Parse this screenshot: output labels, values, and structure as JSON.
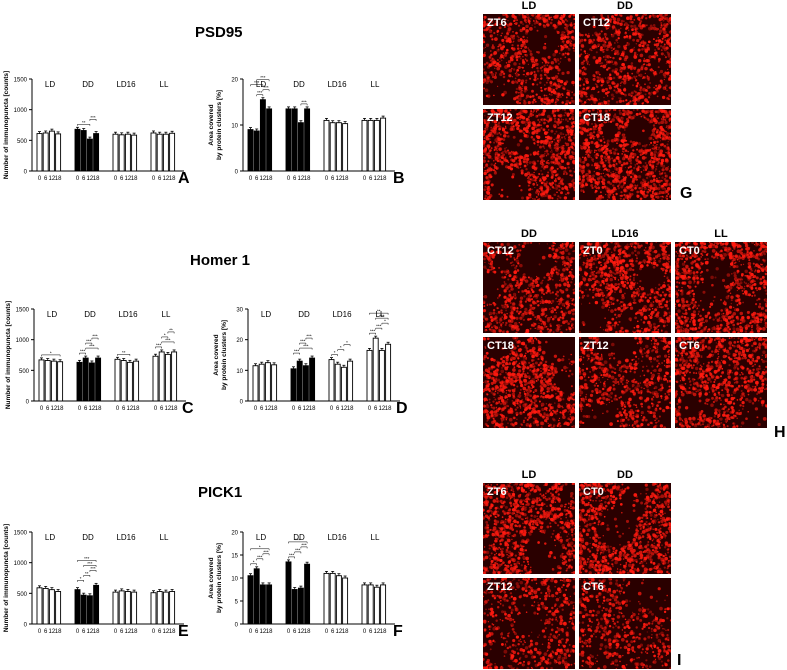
{
  "sections": [
    {
      "title": "PSD95"
    },
    {
      "title": "Homer 1"
    },
    {
      "title": "PICK1"
    }
  ],
  "chart_data": [
    {
      "panel": "A",
      "type": "bar",
      "ylabel": "Number of immunopuncta [counts]",
      "ylim": [
        0,
        1500
      ],
      "yticks": [
        "0",
        "500",
        "1000",
        "1500"
      ],
      "groups": [
        "LD",
        "DD",
        "LD16",
        "LL"
      ],
      "x_tick_labels": [
        "0",
        "6",
        "12",
        "18"
      ],
      "values": [
        [
          610,
          620,
          650,
          605
        ],
        [
          680,
          660,
          520,
          610
        ],
        [
          600,
          590,
          600,
          585
        ],
        [
          620,
          600,
          600,
          615
        ]
      ],
      "filled_groups": [
        "DD"
      ],
      "significance": [
        {
          "group": "DD",
          "from": 0,
          "to": 2,
          "text": "**"
        },
        {
          "group": "DD",
          "from": 2,
          "to": 3,
          "text": "***"
        }
      ]
    },
    {
      "panel": "B",
      "type": "bar",
      "ylabel": "Area covered by protein clusters [%]",
      "ylim": [
        0,
        20
      ],
      "yticks": [
        "0",
        "10",
        "20"
      ],
      "groups": [
        "LD",
        "DD",
        "LD16",
        "LL"
      ],
      "x_tick_labels": [
        "0",
        "6",
        "12",
        "18"
      ],
      "values": [
        [
          9,
          8.7,
          15.5,
          13.5
        ],
        [
          13.5,
          13.5,
          10.5,
          13.5
        ],
        [
          11,
          10.5,
          10.5,
          10.3
        ],
        [
          11,
          11,
          11,
          11.5
        ]
      ],
      "filled_groups": [
        "LD",
        "DD"
      ],
      "significance": [
        {
          "group": "LD",
          "from": 1,
          "to": 2,
          "text": "***"
        },
        {
          "group": "LD",
          "from": 2,
          "to": 3,
          "text": "***"
        },
        {
          "group": "LD",
          "from": 0,
          "to": 2,
          "text": "***"
        },
        {
          "group": "LD",
          "from": 1,
          "to": 3,
          "text": "***"
        },
        {
          "group": "DD",
          "from": 2,
          "to": 3,
          "text": "***"
        }
      ]
    },
    {
      "panel": "C",
      "type": "bar",
      "ylabel": "Number of immunopuncta [counts]",
      "ylim": [
        0,
        1500
      ],
      "yticks": [
        "0",
        "500",
        "1000",
        "1500"
      ],
      "groups": [
        "LD",
        "DD",
        "LD16",
        "LL"
      ],
      "x_tick_labels": [
        "0",
        "6",
        "12",
        "18"
      ],
      "values": [
        [
          670,
          660,
          650,
          640
        ],
        [
          630,
          700,
          620,
          700
        ],
        [
          680,
          660,
          630,
          650
        ],
        [
          730,
          800,
          760,
          800
        ]
      ],
      "filled_groups": [
        "DD"
      ],
      "significance": [
        {
          "group": "LD",
          "from": 0,
          "to": 3,
          "text": "*"
        },
        {
          "group": "DD",
          "from": 0,
          "to": 1,
          "text": "***"
        },
        {
          "group": "DD",
          "from": 1,
          "to": 3,
          "text": "***"
        },
        {
          "group": "DD",
          "from": 1,
          "to": 2,
          "text": "***"
        },
        {
          "group": "DD",
          "from": 2,
          "to": 3,
          "text": "***"
        },
        {
          "group": "LD16",
          "from": 0,
          "to": 2,
          "text": "**"
        },
        {
          "group": "LL",
          "from": 0,
          "to": 1,
          "text": "***"
        },
        {
          "group": "LL",
          "from": 1,
          "to": 3,
          "text": "***"
        },
        {
          "group": "LL",
          "from": 1,
          "to": 2,
          "text": "*"
        },
        {
          "group": "LL",
          "from": 2,
          "to": 3,
          "text": "**"
        }
      ]
    },
    {
      "panel": "D",
      "type": "bar",
      "ylabel": "Area covered by protein clusters [%]",
      "ylim": [
        0,
        30
      ],
      "yticks": [
        "0",
        "10",
        "20",
        "30"
      ],
      "groups": [
        "LD",
        "DD",
        "LD16",
        "LL"
      ],
      "x_tick_labels": [
        "0",
        "6",
        "12",
        "18"
      ],
      "values": [
        [
          11.5,
          12,
          12.5,
          11.8
        ],
        [
          10.5,
          13,
          11.5,
          14
        ],
        [
          13.5,
          12,
          11,
          13
        ],
        [
          16.5,
          20.5,
          16.5,
          18.5
        ]
      ],
      "filled_groups": [
        "DD"
      ],
      "significance": [
        {
          "group": "DD",
          "from": 0,
          "to": 1,
          "text": "***"
        },
        {
          "group": "DD",
          "from": 1,
          "to": 3,
          "text": "***"
        },
        {
          "group": "DD",
          "from": 1,
          "to": 2,
          "text": "***"
        },
        {
          "group": "DD",
          "from": 2,
          "to": 3,
          "text": "***"
        },
        {
          "group": "LD16",
          "from": 0,
          "to": 1,
          "text": "*"
        },
        {
          "group": "LD16",
          "from": 1,
          "to": 2,
          "text": "*"
        },
        {
          "group": "LD16",
          "from": 2,
          "to": 3,
          "text": "*"
        },
        {
          "group": "LL",
          "from": 0,
          "to": 1,
          "text": "***"
        },
        {
          "group": "LL",
          "from": 1,
          "to": 2,
          "text": "***"
        },
        {
          "group": "LL",
          "from": 2,
          "to": 3,
          "text": "*"
        },
        {
          "group": "LL",
          "from": 1,
          "to": 3,
          "text": "***"
        },
        {
          "group": "LL",
          "from": 0,
          "to": 3,
          "text": "**"
        }
      ]
    },
    {
      "panel": "E",
      "type": "bar",
      "ylabel": "Number of immunopuncta [counts]",
      "ylim": [
        0,
        1500
      ],
      "yticks": [
        "0",
        "500",
        "1000",
        "1500"
      ],
      "groups": [
        "LD",
        "DD",
        "LD16",
        "LL"
      ],
      "x_tick_labels": [
        "0",
        "6",
        "12",
        "18"
      ],
      "values": [
        [
          590,
          580,
          560,
          530
        ],
        [
          560,
          470,
          460,
          630
        ],
        [
          520,
          540,
          530,
          520
        ],
        [
          510,
          530,
          520,
          530
        ]
      ],
      "filled_groups": [
        "DD"
      ],
      "significance": [
        {
          "group": "DD",
          "from": 0,
          "to": 1,
          "text": "*"
        },
        {
          "group": "DD",
          "from": 1,
          "to": 2,
          "text": "**"
        },
        {
          "group": "DD",
          "from": 2,
          "to": 3,
          "text": "***"
        },
        {
          "group": "DD",
          "from": 1,
          "to": 3,
          "text": "***"
        },
        {
          "group": "DD",
          "from": 0,
          "to": 3,
          "text": "***"
        }
      ]
    },
    {
      "panel": "F",
      "type": "bar",
      "ylabel": "Area covered by protein clusters [%]",
      "ylim": [
        0,
        20
      ],
      "yticks": [
        "0",
        "5",
        "10",
        "15",
        "20"
      ],
      "groups": [
        "LD",
        "DD",
        "LD16",
        "LL"
      ],
      "x_tick_labels": [
        "0",
        "6",
        "12",
        "18"
      ],
      "values": [
        [
          10.5,
          12,
          8.5,
          8.5
        ],
        [
          13.5,
          7.5,
          7.8,
          13
        ],
        [
          11,
          11,
          10.5,
          10
        ],
        [
          8.5,
          8.5,
          8,
          8.5
        ]
      ],
      "filled_groups": [
        "LD",
        "DD"
      ],
      "significance": [
        {
          "group": "LD",
          "from": 0,
          "to": 1,
          "text": "*"
        },
        {
          "group": "LD",
          "from": 1,
          "to": 2,
          "text": "***"
        },
        {
          "group": "LD",
          "from": 2,
          "to": 3,
          "text": "***"
        },
        {
          "group": "LD",
          "from": 0,
          "to": 3,
          "text": "*"
        },
        {
          "group": "DD",
          "from": 0,
          "to": 1,
          "text": "***"
        },
        {
          "group": "DD",
          "from": 1,
          "to": 2,
          "text": "***"
        },
        {
          "group": "DD",
          "from": 2,
          "to": 3,
          "text": "***"
        },
        {
          "group": "DD",
          "from": 0,
          "to": 3,
          "text": "***"
        }
      ]
    }
  ],
  "micrographs": [
    {
      "panel": "G",
      "column_labels": [
        "LD",
        "DD"
      ],
      "tiles": [
        "ZT6",
        "CT12",
        "ZT12",
        "CT18"
      ],
      "density": [
        0.55,
        0.5,
        0.85,
        0.85
      ]
    },
    {
      "panel": "H",
      "column_labels": [
        "DD",
        "LD16",
        "LL"
      ],
      "tiles": [
        "CT12",
        "ZT0",
        "CT0",
        "CT18",
        "ZT12",
        "CT6"
      ],
      "density": [
        0.6,
        0.7,
        0.75,
        0.85,
        0.45,
        0.7
      ]
    },
    {
      "panel": "I",
      "column_labels": [
        "LD",
        "DD"
      ],
      "tiles": [
        "ZT6",
        "CT0",
        "ZT12",
        "CT6"
      ],
      "density": [
        0.8,
        0.85,
        0.35,
        0.3
      ]
    }
  ],
  "colors": {
    "bar_fill": "#000000",
    "bar_open": "#ffffff",
    "stain": "#ff1a10",
    "tile_bg": "#2a0000"
  }
}
